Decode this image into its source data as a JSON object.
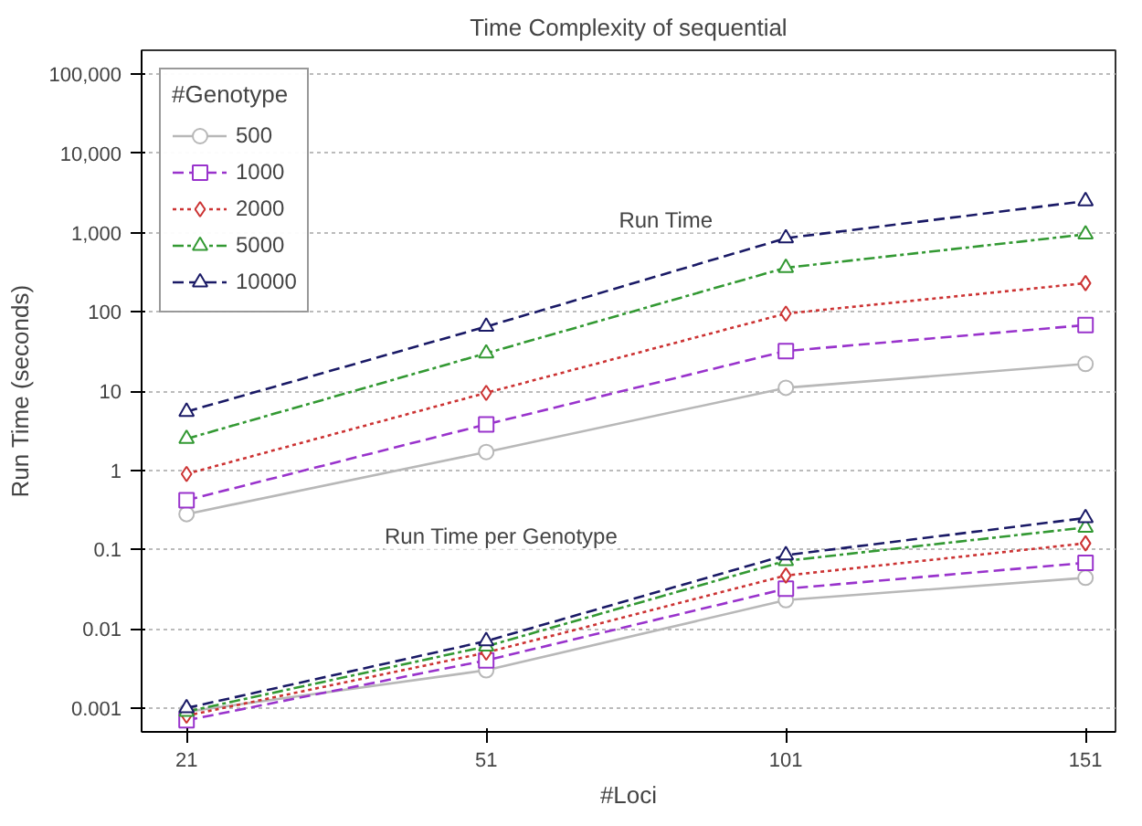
{
  "chart_data": {
    "type": "line",
    "title": "Time Complexity of sequential",
    "xlabel": "#Loci",
    "ylabel": "Run Time (seconds)",
    "legend_title": "#Genotype",
    "categories": [
      "21",
      "51",
      "101",
      "151"
    ],
    "log": "y",
    "ylim": [
      0.0005,
      200000
    ],
    "yticks": [
      {
        "value": 0.001,
        "label": "0.001"
      },
      {
        "value": 0.01,
        "label": "0.01"
      },
      {
        "value": 0.1,
        "label": "0.1"
      },
      1,
      10,
      100,
      {
        "value": 1000,
        "label": "1,000"
      },
      {
        "value": 10000,
        "label": "10,000"
      },
      {
        "value": 100000,
        "label": "100,000"
      }
    ],
    "grid": "y",
    "legend": "top left",
    "annotations": [
      "Run Time",
      "Run Time per Genotype"
    ],
    "series": [
      {
        "name": "500",
        "color": "#b8b8b8",
        "marker": "circle",
        "line_style": "solid",
        "values": [
          0.28,
          1.7,
          11,
          22
        ]
      },
      {
        "name": "1000",
        "color": "#9933cc",
        "marker": "square",
        "line_style": "dashed",
        "values": [
          0.42,
          3.8,
          32,
          68
        ]
      },
      {
        "name": "2000",
        "color": "#cc3333",
        "marker": "diamond",
        "line_style": "dotted",
        "values": [
          0.9,
          9.5,
          95,
          230
        ]
      },
      {
        "name": "5000",
        "color": "#339933",
        "marker": "triangle",
        "line_style": "dashdot",
        "values": [
          2.5,
          30,
          360,
          950
        ]
      },
      {
        "name": "10000",
        "color": "#1a1a66",
        "marker": "triangle",
        "line_style": "dashed",
        "values": [
          5.5,
          65,
          850,
          2500
        ]
      },
      {
        "color": "#b8b8b8",
        "marker": "circle",
        "line_style": "solid",
        "values": [
          0.0009,
          0.003,
          0.023,
          0.044
        ]
      },
      {
        "color": "#9933cc",
        "marker": "square",
        "line_style": "dashed",
        "values": [
          0.0007,
          0.004,
          0.032,
          0.068
        ]
      },
      {
        "color": "#cc3333",
        "marker": "diamond",
        "line_style": "dotted",
        "values": [
          0.0008,
          0.005,
          0.047,
          0.12
        ]
      },
      {
        "color": "#339933",
        "marker": "triangle",
        "line_style": "dashdot",
        "values": [
          0.0009,
          0.006,
          0.072,
          0.19
        ]
      },
      {
        "color": "#1a1a66",
        "marker": "triangle",
        "line_style": "dashed",
        "values": [
          0.001,
          0.007,
          0.085,
          0.25
        ]
      }
    ]
  }
}
